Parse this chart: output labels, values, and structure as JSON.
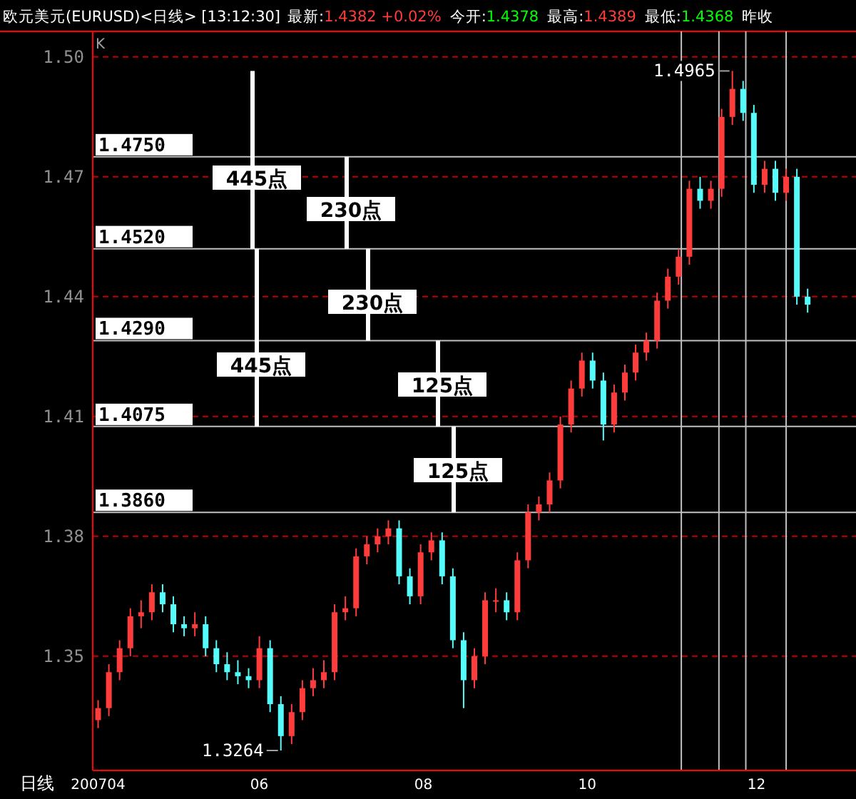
{
  "chart_data": {
    "type": "candlestick",
    "title": "欧元美元(EURUSD)<日线>  [13:12:30]",
    "subtitle": [
      "最新:1.4382 +0.02%",
      "今开:1.4378",
      "最高:1.4389",
      "最低:1.4368",
      "昨收"
    ],
    "xlabel": "日线",
    "colors": [
      "#ff3c3c",
      "#ff3c3c",
      "#ff3c3c",
      "#ff3c3c",
      "#ff3c3c",
      "#ff3c3c",
      "#54fcfc",
      "#54fcfc",
      "#54fcfc",
      "#ff3c3c",
      "#54fcfc",
      "#54fcfc",
      "#54fcfc",
      "#54fcfc",
      "#54fcfc",
      "#ff3c3c",
      "#54fcfc",
      "#54fcfc",
      "#ff3c3c",
      "#ff3c3c",
      "#ff3c3c",
      "#ff3c3c",
      "#ff3c3c",
      "#ff3c3c",
      "#ff3c3c",
      "#ff3c3c",
      "#ff3c3c",
      "#ff3c3c",
      "#54fcfc",
      "#54fcfc",
      "#ff3c3c",
      "#ff3c3c",
      "#54fcfc",
      "#54fcfc",
      "#54fcfc",
      "#ff3c3c",
      "#ff3c3c",
      "#ff3c3c",
      "#54fcfc",
      "#ff3c3c",
      "#ff3c3c",
      "#ff3c3c",
      "#ff3c3c",
      "#ff3c3c",
      "#ff3c3c",
      "#ff3c3c",
      "#54fcfc",
      "#54fcfc",
      "#ff3c3c",
      "#ff3c3c",
      "#ff3c3c",
      "#ff3c3c",
      "#ff3c3c",
      "#ff3c3c",
      "#ff3c3c",
      "#ff3c3c",
      "#54fcfc",
      "#ff3c3c",
      "#ff3c3c",
      "#ff3c3c",
      "#54fcfc",
      "#54fcfc",
      "#ff3c3c",
      "#54fcfc",
      "#ff3c3c",
      "#54fcfc",
      "#54fcfc"
    ],
    "x": [
      "2007-04-02",
      "2007-04-06",
      "2007-04-10",
      "2007-04-14",
      "2007-04-18",
      "2007-04-22",
      "2007-04-26",
      "2007-04-30",
      "2007-05-04",
      "2007-05-08",
      "2007-05-12",
      "2007-05-16",
      "2007-05-20",
      "2007-05-24",
      "2007-05-28",
      "2007-06-01",
      "2007-06-05",
      "2007-06-09",
      "2007-06-13",
      "2007-06-17",
      "2007-06-21",
      "2007-06-25",
      "2007-06-29",
      "2007-07-03",
      "2007-07-07",
      "2007-07-11",
      "2007-07-15",
      "2007-07-19",
      "2007-07-23",
      "2007-07-27",
      "2007-07-31",
      "2007-08-04",
      "2007-08-08",
      "2007-08-12",
      "2007-08-16",
      "2007-08-20",
      "2007-08-24",
      "2007-08-28",
      "2007-09-01",
      "2007-09-05",
      "2007-09-09",
      "2007-09-13",
      "2007-09-17",
      "2007-09-21",
      "2007-09-25",
      "2007-09-29",
      "2007-10-03",
      "2007-10-07",
      "2007-10-11",
      "2007-10-15",
      "2007-10-19",
      "2007-10-23",
      "2007-10-27",
      "2007-10-31",
      "2007-11-04",
      "2007-11-08",
      "2007-11-12",
      "2007-11-16",
      "2007-11-20",
      "2007-11-24",
      "2007-11-28",
      "2007-12-02",
      "2007-12-06",
      "2007-12-10",
      "2007-12-14",
      "2007-12-18",
      "2007-12-22"
    ],
    "ohlc": [
      [
        1.334,
        1.339,
        1.332,
        1.337
      ],
      [
        1.337,
        1.348,
        1.335,
        1.346
      ],
      [
        1.346,
        1.354,
        1.344,
        1.352
      ],
      [
        1.352,
        1.362,
        1.35,
        1.36
      ],
      [
        1.36,
        1.364,
        1.357,
        1.361
      ],
      [
        1.361,
        1.368,
        1.359,
        1.366
      ],
      [
        1.366,
        1.368,
        1.361,
        1.363
      ],
      [
        1.363,
        1.365,
        1.356,
        1.358
      ],
      [
        1.358,
        1.36,
        1.355,
        1.357
      ],
      [
        1.357,
        1.361,
        1.355,
        1.358
      ],
      [
        1.358,
        1.36,
        1.35,
        1.352
      ],
      [
        1.352,
        1.354,
        1.346,
        1.348
      ],
      [
        1.348,
        1.351,
        1.344,
        1.346
      ],
      [
        1.346,
        1.349,
        1.343,
        1.345
      ],
      [
        1.345,
        1.347,
        1.342,
        1.344
      ],
      [
        1.344,
        1.355,
        1.342,
        1.352
      ],
      [
        1.352,
        1.354,
        1.336,
        1.338
      ],
      [
        1.338,
        1.34,
        1.3264,
        1.33
      ],
      [
        1.33,
        1.338,
        1.328,
        1.336
      ],
      [
        1.336,
        1.344,
        1.334,
        1.342
      ],
      [
        1.342,
        1.347,
        1.34,
        1.344
      ],
      [
        1.344,
        1.349,
        1.342,
        1.346
      ],
      [
        1.346,
        1.363,
        1.344,
        1.361
      ],
      [
        1.361,
        1.365,
        1.359,
        1.362
      ],
      [
        1.362,
        1.377,
        1.36,
        1.375
      ],
      [
        1.375,
        1.38,
        1.373,
        1.378
      ],
      [
        1.378,
        1.382,
        1.376,
        1.38
      ],
      [
        1.38,
        1.384,
        1.378,
        1.382
      ],
      [
        1.382,
        1.384,
        1.368,
        1.37
      ],
      [
        1.37,
        1.372,
        1.363,
        1.365
      ],
      [
        1.365,
        1.378,
        1.363,
        1.376
      ],
      [
        1.376,
        1.381,
        1.374,
        1.379
      ],
      [
        1.379,
        1.381,
        1.368,
        1.37
      ],
      [
        1.37,
        1.372,
        1.352,
        1.354
      ],
      [
        1.354,
        1.356,
        1.337,
        1.344
      ],
      [
        1.344,
        1.352,
        1.342,
        1.35
      ],
      [
        1.35,
        1.366,
        1.348,
        1.364
      ],
      [
        1.364,
        1.367,
        1.361,
        1.364
      ],
      [
        1.364,
        1.366,
        1.359,
        1.361
      ],
      [
        1.361,
        1.376,
        1.359,
        1.374
      ],
      [
        1.374,
        1.388,
        1.372,
        1.386
      ],
      [
        1.386,
        1.39,
        1.384,
        1.388
      ],
      [
        1.388,
        1.396,
        1.386,
        1.394
      ],
      [
        1.394,
        1.41,
        1.392,
        1.408
      ],
      [
        1.408,
        1.419,
        1.406,
        1.417
      ],
      [
        1.417,
        1.426,
        1.415,
        1.424
      ],
      [
        1.424,
        1.426,
        1.417,
        1.419
      ],
      [
        1.419,
        1.421,
        1.404,
        1.408
      ],
      [
        1.408,
        1.418,
        1.406,
        1.416
      ],
      [
        1.416,
        1.423,
        1.414,
        1.421
      ],
      [
        1.421,
        1.428,
        1.419,
        1.426
      ],
      [
        1.426,
        1.431,
        1.424,
        1.429
      ],
      [
        1.429,
        1.441,
        1.427,
        1.439
      ],
      [
        1.439,
        1.447,
        1.437,
        1.445
      ],
      [
        1.445,
        1.452,
        1.443,
        1.45
      ],
      [
        1.45,
        1.469,
        1.448,
        1.467
      ],
      [
        1.467,
        1.47,
        1.462,
        1.464
      ],
      [
        1.464,
        1.469,
        1.462,
        1.467
      ],
      [
        1.467,
        1.487,
        1.465,
        1.485
      ],
      [
        1.485,
        1.4965,
        1.483,
        1.492
      ],
      [
        1.492,
        1.494,
        1.484,
        1.486
      ],
      [
        1.486,
        1.488,
        1.466,
        1.468
      ],
      [
        1.468,
        1.474,
        1.466,
        1.472
      ],
      [
        1.472,
        1.474,
        1.464,
        1.466
      ],
      [
        1.466,
        1.472,
        1.464,
        1.47
      ],
      [
        1.47,
        1.472,
        1.438,
        1.44
      ],
      [
        1.44,
        1.442,
        1.436,
        1.438
      ]
    ],
    "xlim": [
      "2007-03-31",
      "2008-01-09"
    ],
    "xticks": [
      {
        "value": "2007-04-02",
        "label": "200704"
      },
      {
        "value": "2007-06-01",
        "label": "06"
      },
      {
        "value": "2007-08-01",
        "label": "08"
      },
      {
        "value": "2007-10-01",
        "label": "10"
      },
      {
        "value": "2007-12-03",
        "label": "12"
      }
    ],
    "ylim": [
      1.3214,
      1.5064
    ],
    "yticks": [
      {
        "value": 1.35,
        "label": "1.35"
      },
      {
        "value": 1.38,
        "label": "1.38"
      },
      {
        "value": 1.41,
        "label": "1.41"
      },
      {
        "value": 1.44,
        "label": "1.44"
      },
      {
        "value": 1.47,
        "label": "1.47"
      },
      {
        "value": 1.5,
        "label": "1.50"
      }
    ],
    "grid": "y",
    "ref_lines": [
      {
        "axis": "y",
        "value": 1.475,
        "label": "1.4750",
        "color": "#c0c0c0"
      },
      {
        "axis": "y",
        "value": 1.452,
        "label": "1.4520",
        "color": "#c0c0c0"
      },
      {
        "axis": "y",
        "value": 1.429,
        "label": "1.4290",
        "color": "#c0c0c0"
      },
      {
        "axis": "y",
        "value": 1.4075,
        "label": "1.4075",
        "color": "#c0c0c0"
      },
      {
        "axis": "y",
        "value": 1.386,
        "label": "1.3860",
        "color": "#c0c0c0"
      },
      {
        "axis": "x",
        "value": "2007-11-05",
        "color": "#c0c0c0"
      },
      {
        "axis": "x",
        "value": "2007-11-19",
        "color": "#c0c0c0"
      },
      {
        "axis": "x",
        "value": "2007-11-29",
        "color": "#c0c0c0"
      },
      {
        "axis": "x",
        "value": "2007-12-14",
        "color": "#c0c0c0"
      }
    ],
    "annotations": [
      "K",
      "445点",
      "230点",
      "230点",
      "445点",
      "125点",
      "125点",
      {
        "text": "1.4965",
        "x": "2007-11-24",
        "y": 1.4965
      },
      {
        "text": "1.3264",
        "x": "2007-06-09",
        "y": 1.3264
      }
    ]
  }
}
